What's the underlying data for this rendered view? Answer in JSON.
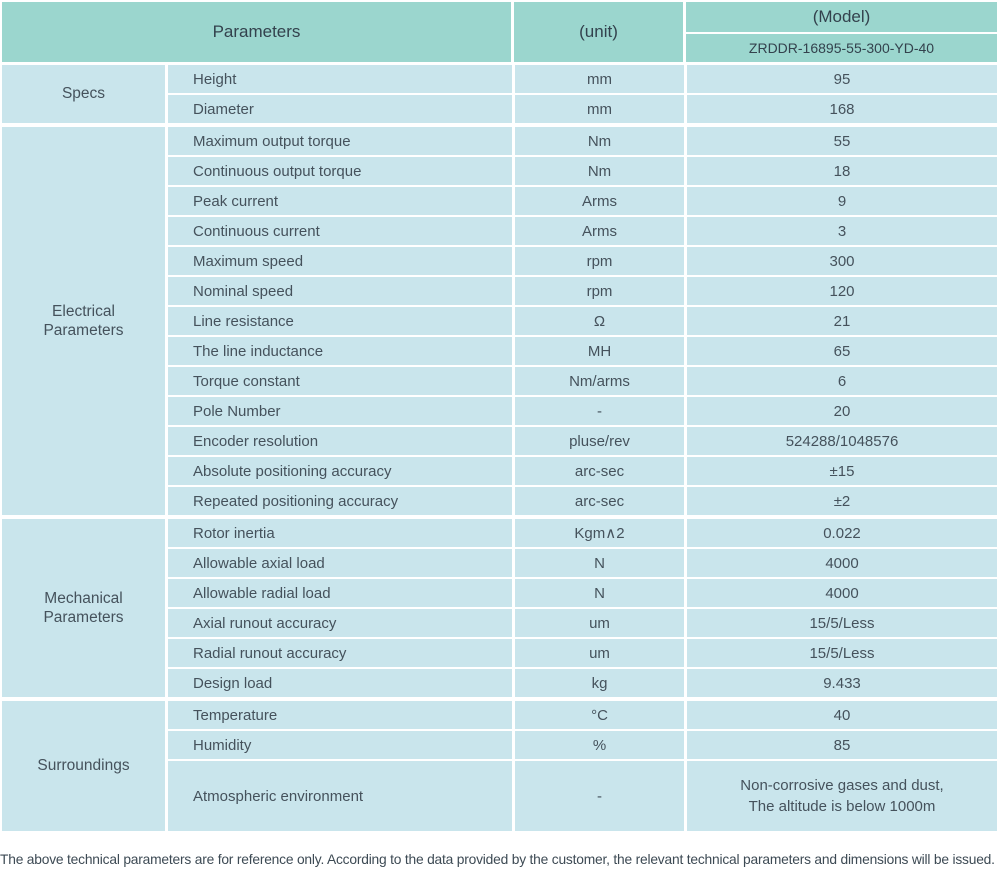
{
  "table": {
    "header": {
      "parameters_label": "Parameters",
      "unit_label": "(unit)",
      "model_label": "(Model)",
      "model_value": "ZRDDR-16895-55-300-YD-40"
    },
    "sections": [
      {
        "category": "Specs",
        "rows": [
          {
            "name": "Height",
            "unit": "mm",
            "value": "95"
          },
          {
            "name": "Diameter",
            "unit": "mm",
            "value": "168"
          }
        ]
      },
      {
        "category": "Electrical Parameters",
        "rows": [
          {
            "name": "Maximum output torque",
            "unit": "Nm",
            "value": "55"
          },
          {
            "name": "Continuous output torque",
            "unit": "Nm",
            "value": "18"
          },
          {
            "name": "Peak current",
            "unit": "Arms",
            "value": "9"
          },
          {
            "name": "Continuous current",
            "unit": "Arms",
            "value": "3"
          },
          {
            "name": "Maximum speed",
            "unit": "rpm",
            "value": "300"
          },
          {
            "name": "Nominal speed",
            "unit": "rpm",
            "value": "120"
          },
          {
            "name": "Line resistance",
            "unit": "Ω",
            "value": "21"
          },
          {
            "name": "The line inductance",
            "unit": "MH",
            "value": "65"
          },
          {
            "name": "Torque constant",
            "unit": "Nm/arms",
            "value": "6"
          },
          {
            "name": "Pole Number",
            "unit": "-",
            "value": "20"
          },
          {
            "name": "Encoder resolution",
            "unit": "pluse/rev",
            "value": "524288/1048576"
          },
          {
            "name": "Absolute positioning accuracy",
            "unit": "arc-sec",
            "value": "±15"
          },
          {
            "name": "Repeated positioning accuracy",
            "unit": "arc-sec",
            "value": "±2"
          }
        ]
      },
      {
        "category": "Mechanical Parameters",
        "rows": [
          {
            "name": "Rotor inertia",
            "unit": "Kgm∧2",
            "value": "0.022"
          },
          {
            "name": "Allowable axial load",
            "unit": "N",
            "value": "4000"
          },
          {
            "name": "Allowable radial load",
            "unit": "N",
            "value": "4000"
          },
          {
            "name": "Axial runout accuracy",
            "unit": "um",
            "value": "15/5/Less"
          },
          {
            "name": "Radial runout accuracy",
            "unit": "um",
            "value": "15/5/Less"
          },
          {
            "name": "Design load",
            "unit": "kg",
            "value": "9.433"
          }
        ]
      },
      {
        "category": "Surroundings",
        "rows": [
          {
            "name": "Temperature",
            "unit": "°C",
            "value": "40"
          },
          {
            "name": "Humidity",
            "unit": "%",
            "value": "85"
          },
          {
            "name": "Atmospheric environment",
            "unit": "-",
            "value": "Non-corrosive gases and dust,\nThe altitude is below 1000m",
            "tall": true
          }
        ]
      }
    ]
  },
  "footer": {
    "note": "The above technical parameters are for reference only. According to the data provided by the customer, the relevant technical parameters and dimensions will be issued."
  },
  "colors": {
    "header_bg": "#9bd6ce",
    "cell_bg": "#c9e5ec",
    "text": "#45525c"
  }
}
